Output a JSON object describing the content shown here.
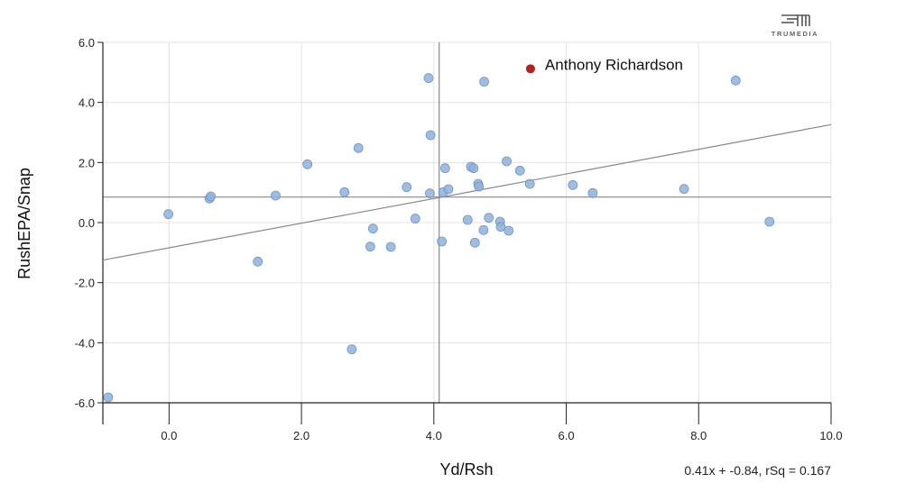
{
  "brand": {
    "name": "TRUMEDIA"
  },
  "chart_data": {
    "type": "scatter",
    "xlabel": "Yd/Rsh",
    "ylabel": "RushEPA/Snap",
    "xlim": [
      -1.0,
      10.0
    ],
    "ylim": [
      -6.0,
      6.0
    ],
    "x_ticks": [
      0.0,
      2.0,
      4.0,
      6.0,
      8.0,
      10.0
    ],
    "y_ticks": [
      -6.0,
      -4.0,
      -2.0,
      0.0,
      2.0,
      4.0,
      6.0
    ],
    "x_tick_labels": [
      "0.0",
      "2.0",
      "4.0",
      "6.0",
      "8.0",
      "10.0"
    ],
    "y_tick_labels": [
      "-6.0",
      "-4.0",
      "-2.0",
      "0.0",
      "2.0",
      "4.0",
      "6.0"
    ],
    "grid": true,
    "reference_lines": {
      "x_mean": 4.08,
      "y_mean": 0.85
    },
    "trendline": {
      "slope": 0.41,
      "intercept": -0.84
    },
    "equation_text": "0.41x + -0.84, rSq = 0.167",
    "colors": {
      "point": "#8fb1d9",
      "point_stroke": "#6f95c4",
      "highlight": "#b22222",
      "trend": "#888888",
      "ref": "#888888",
      "grid": "#e3e3e3"
    },
    "highlight": {
      "label": "Anthony Richardson",
      "x": 5.46,
      "y": 5.12
    },
    "points": [
      {
        "x": -0.92,
        "y": -5.82
      },
      {
        "x": -0.01,
        "y": 0.28
      },
      {
        "x": 0.61,
        "y": 0.8
      },
      {
        "x": 0.63,
        "y": 0.87
      },
      {
        "x": 1.34,
        "y": -1.3
      },
      {
        "x": 1.61,
        "y": 0.9
      },
      {
        "x": 2.09,
        "y": 1.94
      },
      {
        "x": 2.65,
        "y": 1.01
      },
      {
        "x": 2.76,
        "y": -4.22
      },
      {
        "x": 2.86,
        "y": 2.48
      },
      {
        "x": 3.04,
        "y": -0.8
      },
      {
        "x": 3.08,
        "y": -0.2
      },
      {
        "x": 3.35,
        "y": -0.81
      },
      {
        "x": 3.59,
        "y": 1.18
      },
      {
        "x": 3.72,
        "y": 0.13
      },
      {
        "x": 3.92,
        "y": 4.81
      },
      {
        "x": 3.94,
        "y": 0.97
      },
      {
        "x": 3.95,
        "y": 2.91
      },
      {
        "x": 4.12,
        "y": -0.63
      },
      {
        "x": 4.14,
        "y": 1.01
      },
      {
        "x": 4.17,
        "y": 1.81
      },
      {
        "x": 4.22,
        "y": 1.11
      },
      {
        "x": 4.51,
        "y": 0.09
      },
      {
        "x": 4.56,
        "y": 1.86
      },
      {
        "x": 4.6,
        "y": 1.81
      },
      {
        "x": 4.62,
        "y": -0.67
      },
      {
        "x": 4.67,
        "y": 1.29
      },
      {
        "x": 4.68,
        "y": 1.2
      },
      {
        "x": 4.75,
        "y": -0.25
      },
      {
        "x": 4.76,
        "y": 4.69
      },
      {
        "x": 4.83,
        "y": 0.16
      },
      {
        "x": 5.0,
        "y": 0.03
      },
      {
        "x": 5.01,
        "y": -0.14
      },
      {
        "x": 5.1,
        "y": 2.04
      },
      {
        "x": 5.13,
        "y": -0.27
      },
      {
        "x": 5.3,
        "y": 1.73
      },
      {
        "x": 5.45,
        "y": 1.29
      },
      {
        "x": 6.1,
        "y": 1.25
      },
      {
        "x": 6.4,
        "y": 0.98
      },
      {
        "x": 7.78,
        "y": 1.12
      },
      {
        "x": 8.56,
        "y": 4.73
      },
      {
        "x": 9.07,
        "y": 0.03
      }
    ]
  }
}
